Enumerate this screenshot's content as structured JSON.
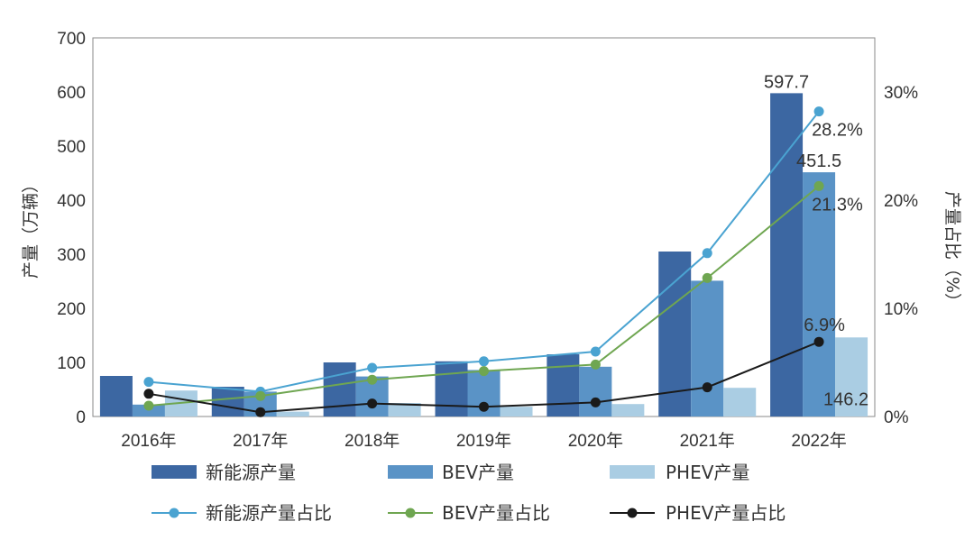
{
  "chart_data": {
    "type": "bar+line",
    "categories": [
      "2016年",
      "2017年",
      "2018年",
      "2019年",
      "2020年",
      "2021年",
      "2022年"
    ],
    "bar_series": [
      {
        "name": "新能源产量",
        "color": "#3c67a2",
        "values": [
          75,
          55,
          100,
          102,
          115,
          305,
          597.7
        ]
      },
      {
        "name": "BEV产量",
        "color": "#5a93c6",
        "values": [
          22,
          46,
          74,
          86,
          92,
          251,
          451.5
        ]
      },
      {
        "name": "PHEV产量",
        "color": "#aacde3",
        "values": [
          48,
          9,
          25,
          18,
          23,
          53,
          146.2
        ]
      }
    ],
    "line_series": [
      {
        "name": "新能源产量占比",
        "color": "#4aa3d1",
        "values": [
          3.2,
          2.3,
          4.5,
          5.1,
          6.0,
          15.1,
          28.2
        ]
      },
      {
        "name": "BEV产量占比",
        "color": "#6fa651",
        "values": [
          1.0,
          1.9,
          3.4,
          4.2,
          4.8,
          12.8,
          21.3
        ]
      },
      {
        "name": "PHEV产量占比",
        "color": "#1a1a1a",
        "values": [
          2.1,
          0.4,
          1.2,
          0.9,
          1.3,
          2.7,
          6.9
        ]
      }
    ],
    "left_axis": {
      "label": "产量（万辆）",
      "min": 0,
      "max": 700,
      "ticks": [
        "0",
        "100",
        "200",
        "300",
        "400",
        "500",
        "600",
        "700"
      ]
    },
    "right_axis": {
      "label": "产量占比（%）",
      "min": 0,
      "max": 35,
      "ticks": [
        "0%",
        "10%",
        "20%",
        "30%"
      ]
    },
    "data_labels": [
      {
        "text": "597.7",
        "series": "新能源产量",
        "category": "2022年"
      },
      {
        "text": "451.5",
        "series": "BEV产量",
        "category": "2022年"
      },
      {
        "text": "146.2",
        "series": "PHEV产量",
        "category": "2022年"
      },
      {
        "text": "28.2%",
        "series": "新能源产量占比",
        "category": "2022年"
      },
      {
        "text": "21.3%",
        "series": "BEV产量占比",
        "category": "2022年"
      },
      {
        "text": "6.9%",
        "series": "PHEV产量占比",
        "category": "2022年"
      }
    ]
  }
}
